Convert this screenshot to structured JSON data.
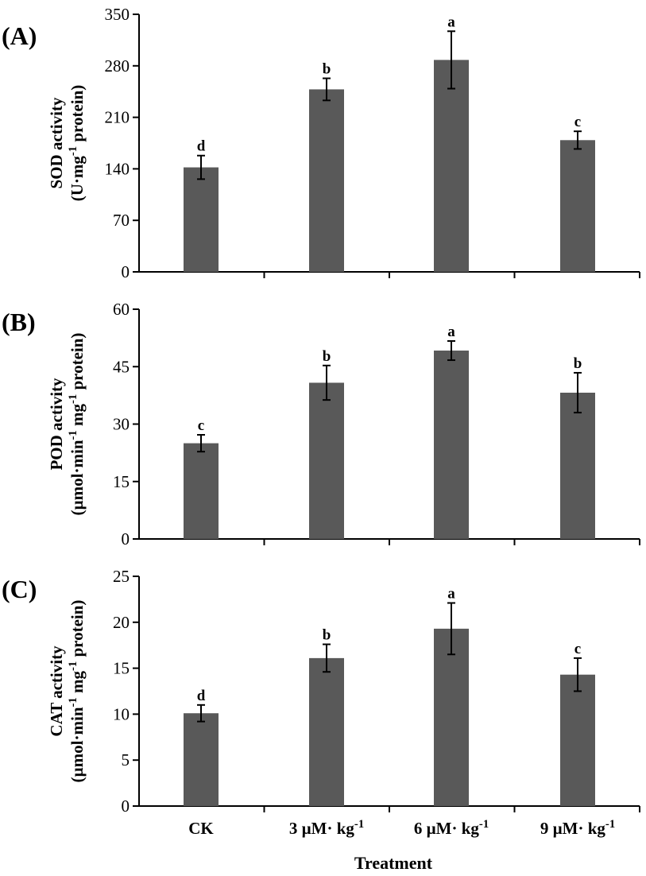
{
  "chart_data": [
    {
      "panel_label": "(A)",
      "type": "bar",
      "categories": [
        "CK",
        "3 µM· kg-1",
        "6 µM· kg-1",
        "9 µM· kg-1"
      ],
      "values": [
        142,
        248,
        288,
        179
      ],
      "errors": [
        16,
        15,
        39,
        12
      ],
      "significance": [
        "d",
        "b",
        "a",
        "c"
      ],
      "ylabel": [
        "SOD activity",
        "(U·mg-1 protein)"
      ],
      "ylim": [
        0,
        350
      ],
      "yticks": [
        "0",
        "70",
        "140",
        "210",
        "280",
        "350"
      ]
    },
    {
      "panel_label": "(B)",
      "type": "bar",
      "categories": [
        "CK",
        "3 µM· kg-1",
        "6 µM· kg-1",
        "9 µM· kg-1"
      ],
      "values": [
        25,
        40.8,
        49.2,
        38.2
      ],
      "errors": [
        2.2,
        4.5,
        2.5,
        5.2
      ],
      "significance": [
        "c",
        "b",
        "a",
        "b"
      ],
      "ylabel": [
        "POD activity",
        "(µmol·min-1 mg-1 protein)"
      ],
      "ylim": [
        0,
        60
      ],
      "yticks": [
        "0",
        "15",
        "30",
        "45",
        "60"
      ]
    },
    {
      "panel_label": "(C)",
      "type": "bar",
      "categories": [
        "CK",
        "3 µM· kg-1",
        "6 µM· kg-1",
        "9 µM· kg-1"
      ],
      "values": [
        10.1,
        16.1,
        19.3,
        14.3
      ],
      "errors": [
        0.9,
        1.5,
        2.8,
        1.8
      ],
      "significance": [
        "d",
        "b",
        "a",
        "c"
      ],
      "ylabel": [
        "CAT activity",
        "(µmol·min-1 mg-1 protein)"
      ],
      "ylim": [
        0,
        25
      ],
      "yticks": [
        "0",
        "5",
        "10",
        "15",
        "20",
        "25"
      ]
    }
  ],
  "xlabel": "Treatment",
  "category_labels": [
    "CK",
    "3 µM· kg-1",
    "6 µM· kg-1",
    "9 µM· kg-1"
  ],
  "colors": {
    "bar": "#595959",
    "axis": "#000000"
  }
}
